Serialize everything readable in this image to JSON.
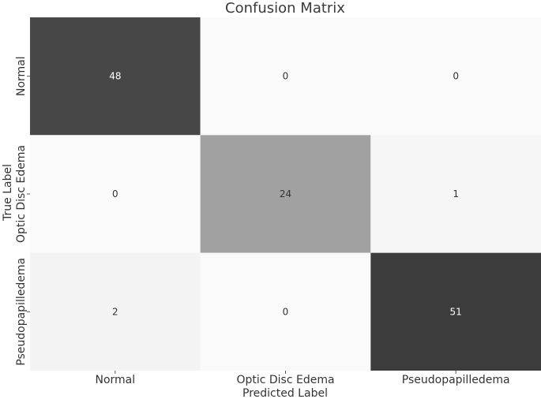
{
  "chart_data": {
    "type": "heatmap",
    "title": "Confusion Matrix",
    "xlabel": "Predicted Label",
    "ylabel": "True Label",
    "x_categories": [
      "Normal",
      "Optic Disc Edema",
      "Pseudopapilledema"
    ],
    "y_categories": [
      "Normal",
      "Optic Disc Edema",
      "Pseudopapilledema"
    ],
    "values": [
      [
        48,
        0,
        0
      ],
      [
        0,
        24,
        1
      ],
      [
        2,
        0,
        51
      ]
    ],
    "colormap": "greys",
    "color_low": "#fafafa",
    "color_high": "#3c3c3c",
    "value_range": [
      0,
      51
    ],
    "colorbar": false,
    "grid": false
  }
}
